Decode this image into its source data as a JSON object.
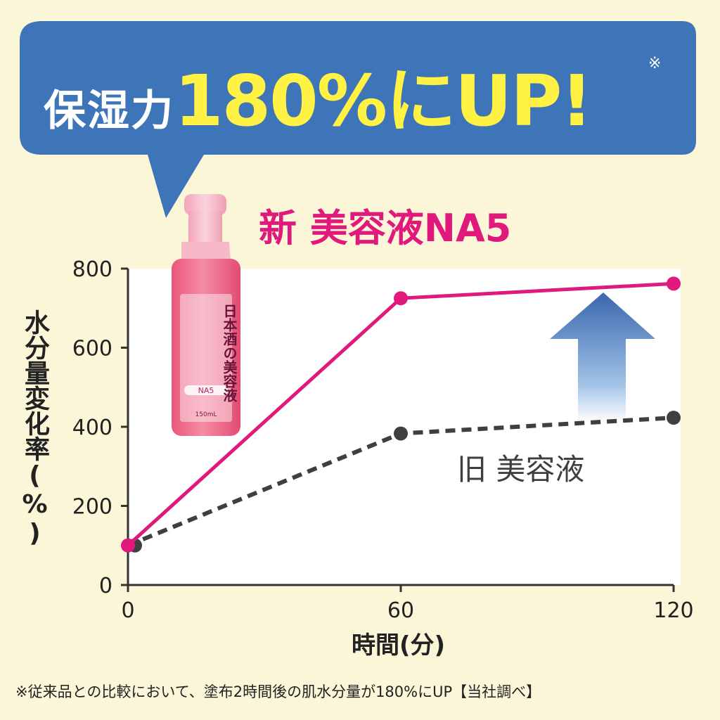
{
  "headline": {
    "prefix": "保湿力",
    "highlight": "180%にUP!",
    "note_mark": "※"
  },
  "product": {
    "name_vertical": "日本酒の美容液",
    "badge": "NA5",
    "volume": "150mL"
  },
  "footnote": "※従来品との比較において、塗布2時間後の肌水分量が180%にUP【当社調べ】",
  "colors": {
    "background": "#fcf6d8",
    "bubble": "#3e74b8",
    "headline_highlight": "#fff245",
    "new_series": "#e0197d",
    "old_series": "#3f3f3f",
    "plot_background": "#ffffff"
  },
  "chart_data": {
    "type": "line",
    "xlabel": "時間(分)",
    "ylabel": "水分量変化率(%)",
    "x": [
      0,
      60,
      120
    ],
    "xticks": [
      "0",
      "60",
      "120"
    ],
    "yticks": [
      "0",
      "200",
      "400",
      "600",
      "800"
    ],
    "xlim": [
      0,
      120
    ],
    "ylim": [
      0,
      800
    ],
    "grid": false,
    "series": [
      {
        "name": "新 美容液NA5",
        "values": [
          100,
          725,
          762
        ],
        "color": "#e0197d",
        "style": "solid"
      },
      {
        "name": "旧 美容液",
        "values": [
          100,
          383,
          423
        ],
        "color": "#3f3f3f",
        "style": "dashed"
      }
    ],
    "annotations": [
      "up-arrow"
    ]
  }
}
